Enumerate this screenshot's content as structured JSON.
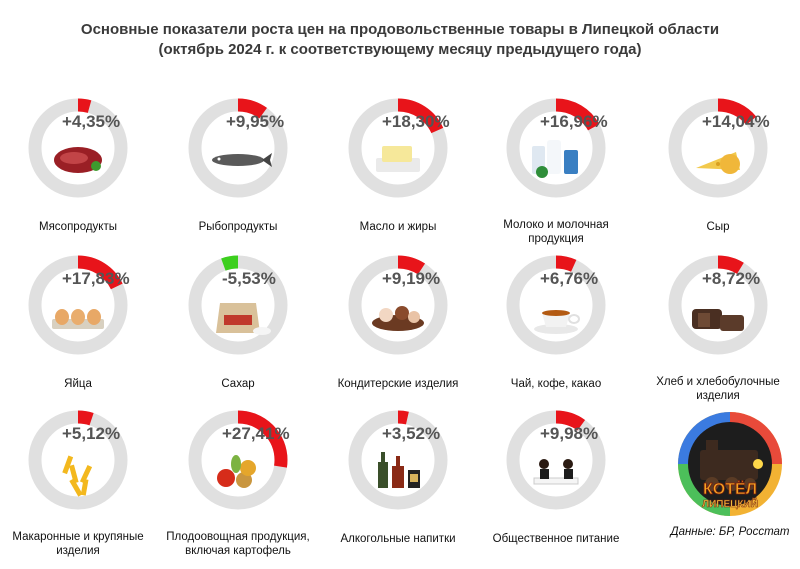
{
  "header": {
    "title_line1": "Основные показатели роста цен на продовольственные товары в Липецкой области",
    "title_line2": "(октябрь 2024 г. к соответствующему месяцу предыдущего года)"
  },
  "colors": {
    "ring": "#e0e0e0",
    "increase": "#e8141a",
    "decrease": "#3ccf1e"
  },
  "chart_data": {
    "type": "donut",
    "unit": "%",
    "items": [
      {
        "label": "Мясопродукты",
        "display": "+4,35%",
        "value": 4.35,
        "icon": "beef-meat-icon"
      },
      {
        "label": "Рыбопродукты",
        "display": "+9,95%",
        "value": 9.95,
        "icon": "fish-icon"
      },
      {
        "label": "Масло и жиры",
        "display": "+18,30%",
        "value": 18.3,
        "icon": "butter-icon"
      },
      {
        "label": "Молоко и молочная|продукция",
        "display": "+16,96%",
        "value": 16.96,
        "icon": "milk-products-icon"
      },
      {
        "label": "Сыр",
        "display": "+14,04%",
        "value": 14.04,
        "icon": "cheese-icon"
      },
      {
        "label": "Яйца",
        "display": "+17,83%",
        "value": 17.83,
        "icon": "eggs-icon"
      },
      {
        "label": "Сахар",
        "display": "-5,53%",
        "value": -5.53,
        "icon": "sugar-sack-icon"
      },
      {
        "label": "Кондитерские изделия",
        "display": "+9,19%",
        "value": 9.19,
        "icon": "pastry-icon"
      },
      {
        "label": "Чай, кофе, какао",
        "display": "+6,76%",
        "value": 6.76,
        "icon": "tea-cup-icon"
      },
      {
        "label": "Хлеб и хлебобулочные|изделия",
        "display": "+8,72%",
        "value": 8.72,
        "icon": "bread-icon"
      },
      {
        "label": "Макаронные и крупяные|изделия",
        "display": "+5,12%",
        "value": 5.12,
        "icon": "pasta-icon"
      },
      {
        "label": "Плодоовощная продукция,|включая картофель",
        "display": "+27,41%",
        "value": 27.41,
        "icon": "vegetables-icon"
      },
      {
        "label": "Алкогольные напитки",
        "display": "+3,52%",
        "value": 3.52,
        "icon": "alcohol-bottles-icon"
      },
      {
        "label": "Общественное питание",
        "display": "+9,98%",
        "value": 9.98,
        "icon": "restaurant-icon"
      }
    ]
  },
  "logo": {
    "icon": "kotel-lipetsk-logo",
    "text_line1": "КОТЁЛ",
    "text_line2": "ЛИПЕЦКИЙ"
  },
  "source": "Данные: БР, Росстат"
}
